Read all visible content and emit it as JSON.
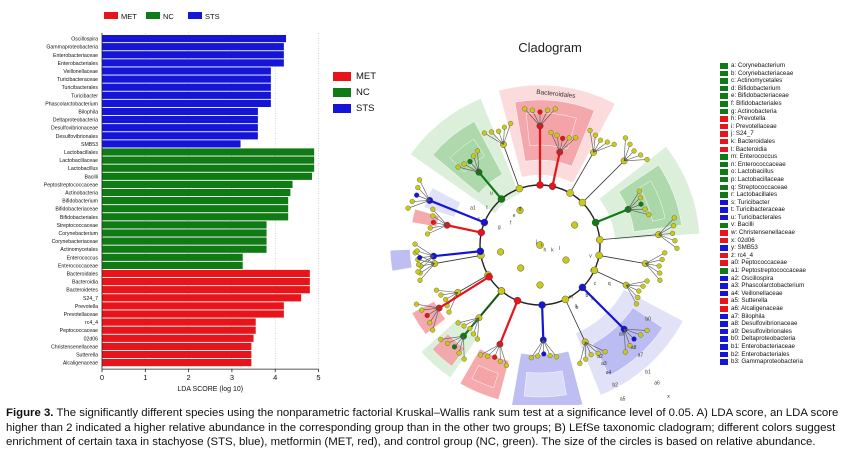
{
  "figure": {
    "caption_label": "Figure 3.",
    "caption_text": "The significantly different species using the nonparametric factorial Kruskal–Wallis rank sum test at a significance level of 0.05. A) LDA score, an LDA score higher than 2 indicated a higher relative abundance in the corresponding group than in the other two groups; B) LEfSe taxonomic cladogram; different colors suggest enrichment of certain taxa in stachyose (STS, blue), metformin (MET, red), and control group (NC, green). The size of the circles is based on relative abundance."
  },
  "colors": {
    "MET": "#e8141b",
    "NC": "#107a14",
    "STS": "#1515d8"
  },
  "chart_data": [
    {
      "type": "bar",
      "orientation": "horizontal",
      "xlabel": "LDA SCORE (log 10)",
      "xlim": [
        0,
        5
      ],
      "xticks": [
        0,
        1,
        2,
        3,
        4,
        5
      ],
      "grid": true,
      "legend": [
        "MET",
        "NC",
        "STS"
      ],
      "legend_placement": "top",
      "categories": [
        "Oscillospira",
        "Gammaproteobacteria",
        "Enterobacteriaceae",
        "Enterobacteriales",
        "Veillonellaceae",
        "Turicibacteraceae",
        "Turicibacterales",
        "Turicibacter",
        "Phascolarctobacterium",
        "Bilophila",
        "Deltaproteobacteria",
        "Desulfovibrionaceae",
        "Desulfovibrionales",
        "SMB53",
        "Lactobacillales",
        "Lactobacillaceae",
        "Lactobacillus",
        "Bacilli",
        "Peptostreptococcaceae",
        "Actinobacteria",
        "Bifidobacterium",
        "Bifidobacteriaceae",
        "Bifidobacteriales",
        "Streptococcaceae",
        "Corynebacterium",
        "Corynebacteriaceae",
        "Actinomycetales",
        "Enterococcus",
        "Enterococcaceae",
        "Bacteroidales",
        "Bacteroidia",
        "Bacteroidetes",
        "S24_7",
        "Prevotella",
        "Prevotellaceae",
        "rc4_4",
        "Peptococcaceae",
        "02d06",
        "Christensenellaceae",
        "Sutterella",
        "Alcaligenaceae"
      ],
      "values": [
        4.25,
        4.2,
        4.2,
        4.2,
        3.9,
        3.9,
        3.9,
        3.9,
        3.9,
        3.6,
        3.6,
        3.6,
        3.6,
        3.2,
        4.9,
        4.9,
        4.9,
        4.85,
        4.4,
        4.35,
        4.3,
        4.3,
        4.3,
        3.8,
        3.8,
        3.8,
        3.8,
        3.25,
        3.25,
        4.8,
        4.8,
        4.8,
        4.6,
        4.2,
        4.2,
        3.55,
        3.55,
        3.5,
        3.45,
        3.45,
        3.45
      ],
      "groups": [
        "STS",
        "STS",
        "STS",
        "STS",
        "STS",
        "STS",
        "STS",
        "STS",
        "STS",
        "STS",
        "STS",
        "STS",
        "STS",
        "STS",
        "NC",
        "NC",
        "NC",
        "NC",
        "NC",
        "NC",
        "NC",
        "NC",
        "NC",
        "NC",
        "NC",
        "NC",
        "NC",
        "NC",
        "NC",
        "MET",
        "MET",
        "MET",
        "MET",
        "MET",
        "MET",
        "MET",
        "MET",
        "MET",
        "MET",
        "MET",
        "MET"
      ]
    },
    {
      "type": "cladogram",
      "title": "Cladogram",
      "legend": [
        "MET",
        "NC",
        "STS"
      ],
      "clade_label": "Bacteroidales",
      "sector_letters": [
        "a",
        "b",
        "c",
        "d",
        "e",
        "f",
        "g",
        "h",
        "i",
        "j",
        "k",
        "l",
        "m",
        "n",
        "o",
        "p",
        "q",
        "r",
        "s",
        "t",
        "u",
        "v",
        "w",
        "x",
        "y",
        "z",
        "a0",
        "a1",
        "a2",
        "a3",
        "a4",
        "a5",
        "a6",
        "a7",
        "a8",
        "a9",
        "b0",
        "b1",
        "b2",
        "b3"
      ],
      "taxa_legend": [
        {
          "label": "a: Corynebacterium",
          "group": "NC"
        },
        {
          "label": "b: Corynebacteriaceae",
          "group": "NC"
        },
        {
          "label": "c: Actinomycetales",
          "group": "NC"
        },
        {
          "label": "d: Bifidobacterium",
          "group": "NC"
        },
        {
          "label": "e: Bifidobacteriaceae",
          "group": "NC"
        },
        {
          "label": "f: Bifidobacteriales",
          "group": "NC"
        },
        {
          "label": "g: Actinobacteria",
          "group": "NC"
        },
        {
          "label": "h: Prevotella",
          "group": "MET"
        },
        {
          "label": "i: Prevotellaceae",
          "group": "MET"
        },
        {
          "label": "j: S24_7",
          "group": "MET"
        },
        {
          "label": "k: Bacteroidales",
          "group": "MET"
        },
        {
          "label": "l: Bacteroidia",
          "group": "MET"
        },
        {
          "label": "m: Enterococcus",
          "group": "NC"
        },
        {
          "label": "n: Enterococcaceae",
          "group": "NC"
        },
        {
          "label": "o: Lactobacillus",
          "group": "NC"
        },
        {
          "label": "p: Lactobacillaceae",
          "group": "NC"
        },
        {
          "label": "q: Streptococcaceae",
          "group": "NC"
        },
        {
          "label": "r: Lactobacillales",
          "group": "NC"
        },
        {
          "label": "s: Turicibacter",
          "group": "STS"
        },
        {
          "label": "t: Turicibacteraceae",
          "group": "STS"
        },
        {
          "label": "u: Turicibacterales",
          "group": "STS"
        },
        {
          "label": "v: Bacilli",
          "group": "NC"
        },
        {
          "label": "w: Christensenellaceae",
          "group": "MET"
        },
        {
          "label": "x: 02d06",
          "group": "MET"
        },
        {
          "label": "y: SMB53",
          "group": "STS"
        },
        {
          "label": "z: rc4_4",
          "group": "MET"
        },
        {
          "label": "a0: Peptococcaceae",
          "group": "MET"
        },
        {
          "label": "a1: Peptostreptococcaceae",
          "group": "NC"
        },
        {
          "label": "a2: Oscillospira",
          "group": "STS"
        },
        {
          "label": "a3: Phascolarctobacterium",
          "group": "STS"
        },
        {
          "label": "a4: Veillonellaceae",
          "group": "STS"
        },
        {
          "label": "a5: Sutterella",
          "group": "MET"
        },
        {
          "label": "a6: Alcaligenaceae",
          "group": "MET"
        },
        {
          "label": "a7: Bilophila",
          "group": "STS"
        },
        {
          "label": "a8: Desulfovibrionaceae",
          "group": "STS"
        },
        {
          "label": "a9: Desulfovibrionales",
          "group": "STS"
        },
        {
          "label": "b0: Deltaproteobacteria",
          "group": "STS"
        },
        {
          "label": "b1: Enterobacteriaceae",
          "group": "STS"
        },
        {
          "label": "b2: Enterobacteriales",
          "group": "STS"
        },
        {
          "label": "b3: Gammaproteobacteria",
          "group": "STS"
        }
      ]
    }
  ]
}
